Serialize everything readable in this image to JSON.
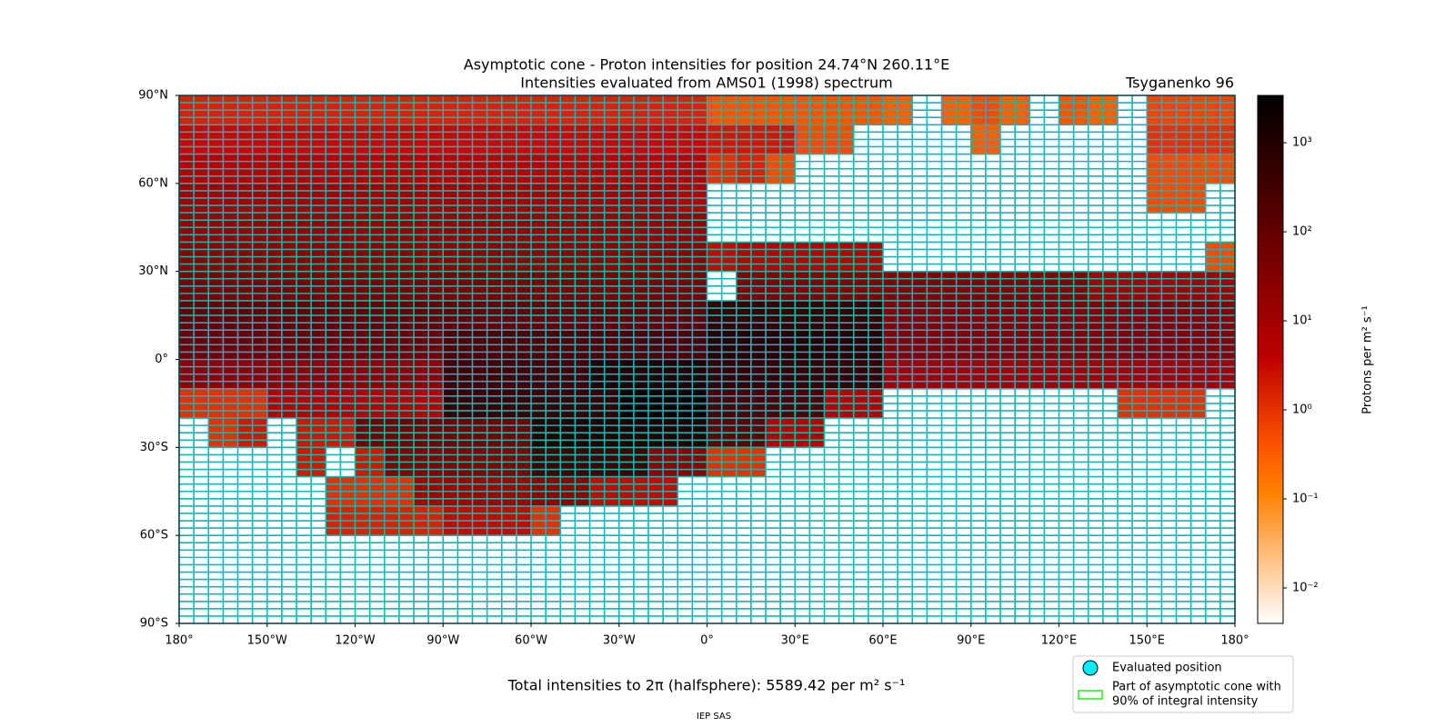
{
  "chart_data": {
    "type": "heatmap",
    "title": "Asymptotic cone - Proton intensities for position 24.74°N 260.11°E",
    "subtitle": "Intensities evaluated from AMS01 (1998) spectrum",
    "model": "Tsyganenko 96",
    "xlim": [
      -180,
      180
    ],
    "ylim": [
      -90,
      90
    ],
    "xticks": [
      {
        "value": -180,
        "label": "180°"
      },
      {
        "value": -150,
        "label": "150°W"
      },
      {
        "value": -120,
        "label": "120°W"
      },
      {
        "value": -90,
        "label": "90°W"
      },
      {
        "value": -60,
        "label": "60°W"
      },
      {
        "value": -30,
        "label": "30°W"
      },
      {
        "value": 0,
        "label": "0°"
      },
      {
        "value": 30,
        "label": "30°E"
      },
      {
        "value": 60,
        "label": "60°E"
      },
      {
        "value": 90,
        "label": "90°E"
      },
      {
        "value": 120,
        "label": "120°E"
      },
      {
        "value": 150,
        "label": "150°E"
      },
      {
        "value": 180,
        "label": "180°"
      }
    ],
    "yticks": [
      {
        "value": 90,
        "label": "90°N"
      },
      {
        "value": 60,
        "label": "60°N"
      },
      {
        "value": 30,
        "label": "30°N"
      },
      {
        "value": 0,
        "label": "0°"
      },
      {
        "value": -30,
        "label": "30°S"
      },
      {
        "value": -60,
        "label": "60°S"
      },
      {
        "value": -90,
        "label": "90°S"
      }
    ],
    "z": [
      [
        1.5,
        1.5,
        1.5,
        1.5,
        1.5,
        1.5,
        1.5,
        1.5,
        1.5,
        1.5,
        1.5,
        1.5,
        1.5,
        1.5,
        1.5,
        1.5,
        1.5,
        1.5,
        0.4,
        0.4,
        0.4,
        0.4,
        0.4,
        0.4,
        0.3,
        null,
        0.3,
        0.5,
        0.3,
        null,
        0.4,
        0.3,
        null,
        0.6,
        0.6,
        0.6
      ],
      [
        3,
        3,
        3,
        3,
        3,
        3,
        3,
        3,
        3,
        3,
        3,
        3,
        3,
        3,
        3,
        3,
        3,
        3,
        2,
        2,
        2,
        0.5,
        0.5,
        null,
        null,
        null,
        null,
        0.3,
        null,
        null,
        null,
        null,
        null,
        1,
        1,
        1
      ],
      [
        5,
        5,
        5,
        5,
        5,
        5,
        5,
        5,
        5,
        5,
        5,
        5,
        5,
        5,
        5,
        5,
        5,
        5,
        1,
        1.5,
        0.5,
        null,
        null,
        null,
        null,
        null,
        null,
        null,
        null,
        null,
        null,
        null,
        null,
        0.5,
        0.5,
        0.5
      ],
      [
        10,
        10,
        10,
        10,
        10,
        10,
        10,
        10,
        10,
        10,
        10,
        10,
        10,
        10,
        10,
        10,
        10,
        5,
        null,
        null,
        null,
        null,
        null,
        null,
        null,
        null,
        null,
        null,
        null,
        null,
        null,
        null,
        null,
        0.5,
        0.5,
        null
      ],
      [
        15,
        15,
        15,
        15,
        15,
        15,
        15,
        15,
        15,
        15,
        15,
        15,
        15,
        15,
        15,
        15,
        15,
        15,
        null,
        null,
        null,
        null,
        null,
        null,
        null,
        null,
        null,
        null,
        null,
        null,
        null,
        null,
        null,
        null,
        null,
        null
      ],
      [
        20,
        20,
        20,
        20,
        20,
        20,
        20,
        20,
        20,
        20,
        20,
        20,
        20,
        20,
        20,
        20,
        20,
        20,
        3,
        5,
        5,
        5,
        5,
        5,
        null,
        null,
        null,
        null,
        null,
        null,
        null,
        null,
        null,
        null,
        null,
        0.5
      ],
      [
        40,
        40,
        40,
        40,
        40,
        40,
        40,
        40,
        40,
        40,
        40,
        40,
        40,
        40,
        40,
        40,
        40,
        40,
        null,
        30,
        30,
        30,
        30,
        30,
        30,
        30,
        30,
        30,
        30,
        30,
        30,
        10,
        10,
        10,
        10,
        10
      ],
      [
        80,
        80,
        80,
        80,
        80,
        80,
        80,
        80,
        80,
        80,
        80,
        80,
        80,
        80,
        80,
        80,
        80,
        100,
        500,
        500,
        500,
        500,
        500,
        500,
        30,
        30,
        30,
        30,
        30,
        30,
        30,
        30,
        30,
        30,
        30,
        30
      ],
      [
        60,
        60,
        60,
        60,
        60,
        60,
        60,
        60,
        60,
        200,
        200,
        200,
        200,
        200,
        200,
        200,
        200,
        200,
        800,
        800,
        800,
        800,
        800,
        800,
        30,
        30,
        30,
        30,
        30,
        30,
        30,
        30,
        30,
        30,
        30,
        30
      ],
      [
        20,
        20,
        20,
        20,
        20,
        20,
        20,
        20,
        20,
        300,
        300,
        300,
        300,
        300,
        1000,
        1000,
        1000,
        1000,
        500,
        500,
        500,
        500,
        500,
        500,
        10,
        10,
        10,
        10,
        10,
        10,
        10,
        10,
        10,
        10,
        10,
        10
      ],
      [
        1,
        1,
        1,
        5,
        5,
        5,
        5,
        5,
        5,
        500,
        500,
        500,
        500,
        500,
        500,
        2000,
        2000,
        2000,
        200,
        200,
        200,
        200,
        5,
        5,
        null,
        null,
        null,
        null,
        null,
        null,
        null,
        null,
        1,
        1,
        1,
        null
      ],
      [
        null,
        1,
        2,
        null,
        2,
        2,
        50,
        50,
        50,
        50,
        50,
        50,
        1000,
        1000,
        1000,
        1000,
        1000,
        1000,
        100,
        100,
        5,
        5,
        null,
        null,
        null,
        null,
        null,
        null,
        null,
        null,
        null,
        null,
        null,
        null,
        null,
        null
      ],
      [
        null,
        null,
        null,
        null,
        2,
        null,
        2,
        30,
        30,
        30,
        30,
        30,
        300,
        300,
        300,
        300,
        20,
        20,
        1,
        1,
        null,
        null,
        null,
        null,
        null,
        null,
        null,
        null,
        null,
        null,
        null,
        null,
        null,
        null,
        null,
        null
      ],
      [
        null,
        null,
        null,
        null,
        null,
        1,
        1,
        1,
        10,
        10,
        10,
        10,
        20,
        20,
        3,
        3,
        3,
        null,
        null,
        null,
        null,
        null,
        null,
        null,
        null,
        null,
        null,
        null,
        null,
        null,
        null,
        null,
        null,
        null,
        null,
        null
      ],
      [
        null,
        null,
        null,
        null,
        null,
        1.5,
        1.5,
        1.5,
        1.5,
        3,
        3,
        3,
        1,
        null,
        null,
        null,
        null,
        null,
        null,
        null,
        null,
        null,
        null,
        null,
        null,
        null,
        null,
        null,
        null,
        null,
        null,
        null,
        null,
        null,
        null,
        null
      ],
      [
        null,
        null,
        null,
        null,
        null,
        null,
        null,
        null,
        null,
        null,
        null,
        null,
        null,
        null,
        null,
        null,
        null,
        null,
        null,
        null,
        null,
        null,
        null,
        null,
        null,
        null,
        null,
        null,
        null,
        null,
        null,
        null,
        null,
        null,
        null,
        null
      ],
      [
        null,
        null,
        null,
        null,
        null,
        null,
        null,
        null,
        null,
        null,
        null,
        null,
        null,
        null,
        null,
        null,
        null,
        null,
        null,
        null,
        null,
        null,
        null,
        null,
        null,
        null,
        null,
        null,
        null,
        null,
        null,
        null,
        null,
        null,
        null,
        null
      ],
      [
        null,
        null,
        null,
        null,
        null,
        null,
        null,
        null,
        null,
        null,
        null,
        null,
        null,
        null,
        null,
        null,
        null,
        null,
        null,
        null,
        null,
        null,
        null,
        null,
        null,
        null,
        null,
        null,
        null,
        null,
        null,
        null,
        null,
        null,
        null,
        null
      ]
    ],
    "colormap": "gist_heat_r",
    "log_scale": true,
    "clim": [
      0.004,
      3400
    ],
    "cticks": [
      {
        "value": 0.01,
        "label": "10⁻²"
      },
      {
        "value": 0.1,
        "label": "10⁻¹"
      },
      {
        "value": 1,
        "label": "10⁰"
      },
      {
        "value": 10,
        "label": "10¹"
      },
      {
        "value": 100,
        "label": "10²"
      },
      {
        "value": 1000,
        "label": "10³"
      }
    ],
    "colorbar_label": "Protons per m² s⁻¹",
    "total_label": "Total intensities to 2π (halfsphere): 5589.42 per m² s⁻¹",
    "credit": "IEP SAS",
    "legend": [
      "Evaluated position",
      "Part of asymptotic cone with",
      "90% of integral intensity"
    ]
  }
}
